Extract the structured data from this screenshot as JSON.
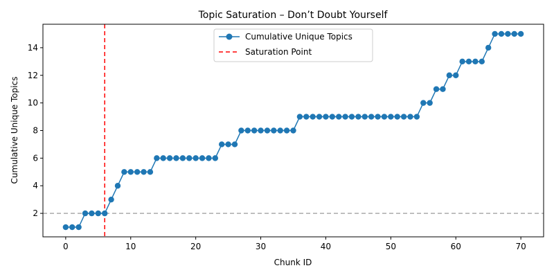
{
  "chart_data": {
    "type": "line",
    "title": "Topic Saturation – Don’t Doubt Yourself",
    "xlabel": "Chunk ID",
    "ylabel": "Cumulative Unique Topics",
    "xlim": [
      -3.5,
      73.5
    ],
    "ylim": [
      0.3,
      15.7
    ],
    "xticks": [
      0,
      10,
      20,
      30,
      40,
      50,
      60,
      70
    ],
    "yticks": [
      2,
      4,
      6,
      8,
      10,
      12,
      14
    ],
    "grid": false,
    "legend_position": "top-center",
    "series": [
      {
        "name": "Cumulative Unique Topics",
        "color": "#1f77b4",
        "marker": "circle",
        "x": [
          0,
          1,
          2,
          3,
          4,
          5,
          6,
          7,
          8,
          9,
          10,
          11,
          12,
          13,
          14,
          15,
          16,
          17,
          18,
          19,
          20,
          21,
          22,
          23,
          24,
          25,
          26,
          27,
          28,
          29,
          30,
          31,
          32,
          33,
          34,
          35,
          36,
          37,
          38,
          39,
          40,
          41,
          42,
          43,
          44,
          45,
          46,
          47,
          48,
          49,
          50,
          51,
          52,
          53,
          54,
          55,
          56,
          57,
          58,
          59,
          60,
          61,
          62,
          63,
          64,
          65,
          66,
          67,
          68,
          69,
          70
        ],
        "y": [
          1,
          1,
          1,
          2,
          2,
          2,
          2,
          3,
          4,
          5,
          5,
          5,
          5,
          5,
          6,
          6,
          6,
          6,
          6,
          6,
          6,
          6,
          6,
          6,
          7,
          7,
          7,
          8,
          8,
          8,
          8,
          8,
          8,
          8,
          8,
          8,
          9,
          9,
          9,
          9,
          9,
          9,
          9,
          9,
          9,
          9,
          9,
          9,
          9,
          9,
          9,
          9,
          9,
          9,
          9,
          10,
          10,
          11,
          11,
          12,
          12,
          13,
          13,
          13,
          13,
          14,
          15,
          15,
          15,
          15,
          15
        ]
      }
    ],
    "reference_lines": [
      {
        "name": "Saturation Point",
        "orientation": "vertical",
        "value": 6,
        "color": "#ff0000",
        "style": "dashed",
        "in_legend": true
      },
      {
        "orientation": "horizontal",
        "value": 2,
        "color": "#aaaaaa",
        "style": "dashed",
        "in_legend": false
      }
    ]
  }
}
